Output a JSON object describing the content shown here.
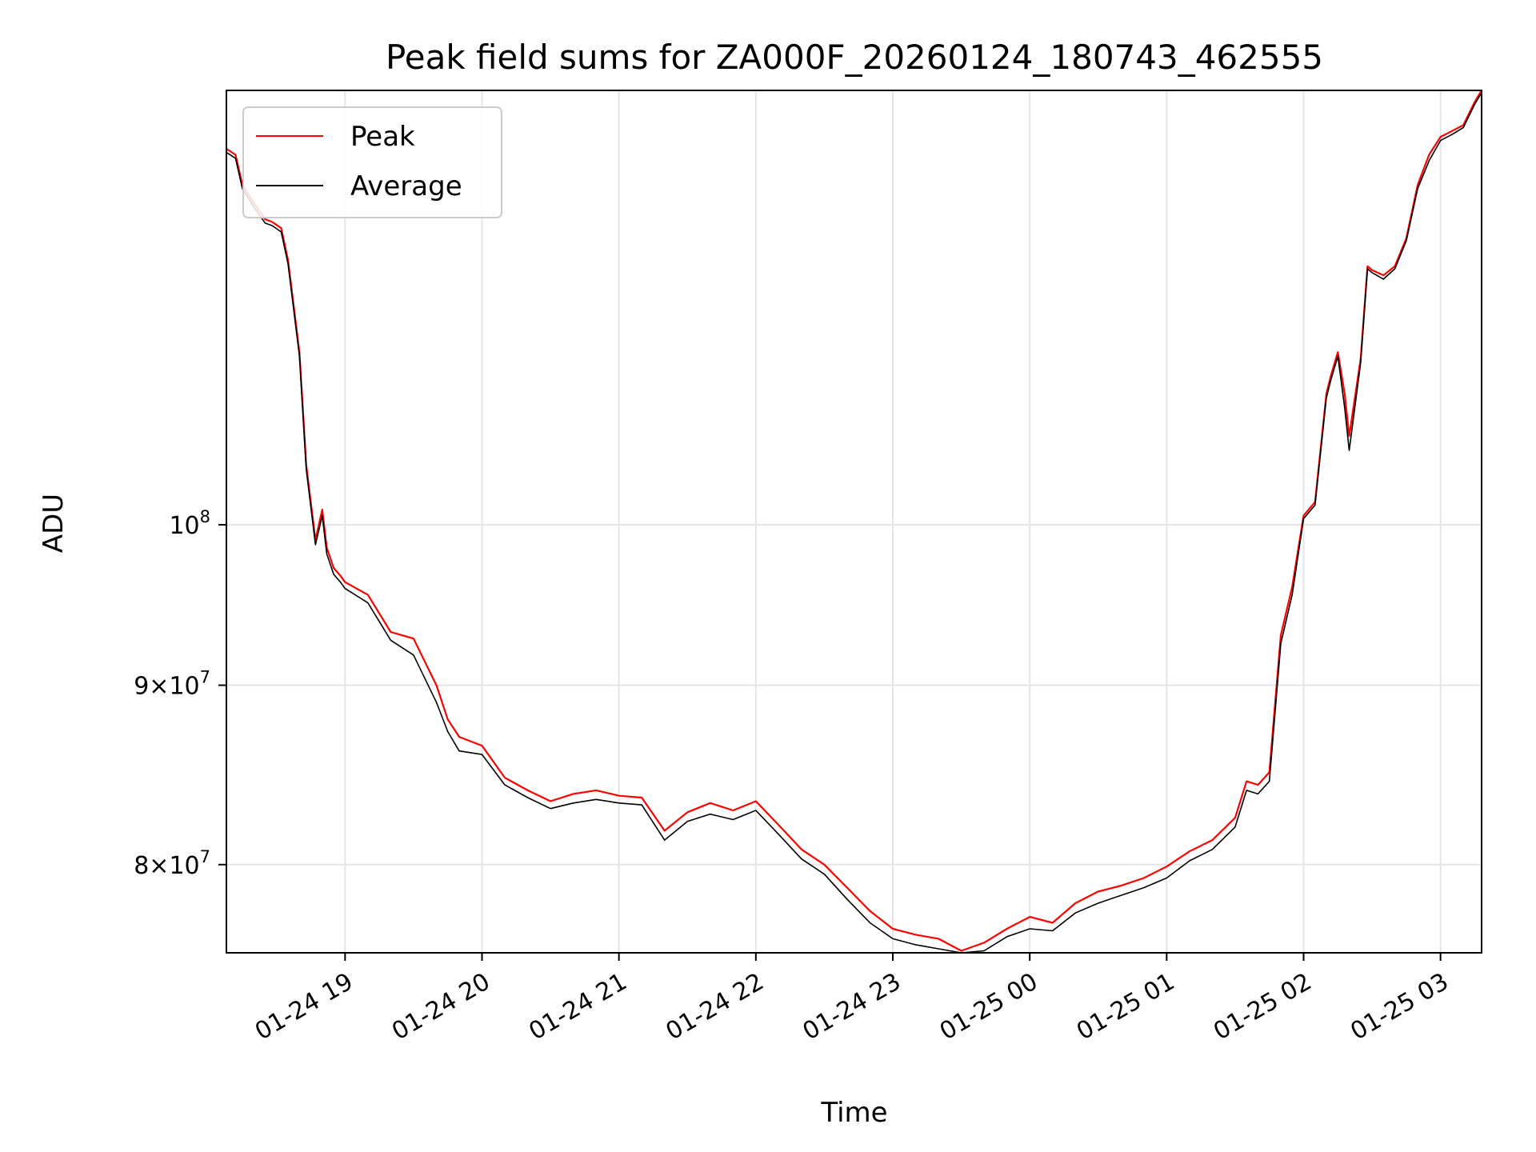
{
  "chart_data": {
    "type": "line",
    "title": "Peak field sums for ZA000F_20260124_180743_462555",
    "xlabel": "Time",
    "ylabel": "ADU",
    "yscale": "log",
    "xlim": [
      "2026-01-24 18:08",
      "2026-01-25 03:18"
    ],
    "ylim": [
      75500000,
      133000000
    ],
    "grid": true,
    "legend_position": "top-left",
    "x_ticks": [
      {
        "value": "2026-01-24 19:00",
        "label": "01-24 19"
      },
      {
        "value": "2026-01-24 20:00",
        "label": "01-24 20"
      },
      {
        "value": "2026-01-24 21:00",
        "label": "01-24 21"
      },
      {
        "value": "2026-01-24 22:00",
        "label": "01-24 22"
      },
      {
        "value": "2026-01-24 23:00",
        "label": "01-24 23"
      },
      {
        "value": "2026-01-25 00:00",
        "label": "01-25 00"
      },
      {
        "value": "2026-01-25 01:00",
        "label": "01-25 01"
      },
      {
        "value": "2026-01-25 02:00",
        "label": "01-25 02"
      },
      {
        "value": "2026-01-25 03:00",
        "label": "01-25 03"
      }
    ],
    "y_ticks": [
      {
        "value": 80000000,
        "mantissa": "8",
        "base": "10",
        "exp": "7"
      },
      {
        "value": 90000000,
        "mantissa": "9",
        "base": "10",
        "exp": "7"
      },
      {
        "value": 100000000,
        "mantissa": "",
        "base": "10",
        "exp": "8"
      }
    ],
    "series": [
      {
        "name": "Peak",
        "color": "#ff0000",
        "x": [
          "2026-01-24 18:08",
          "2026-01-24 18:12",
          "2026-01-24 18:15",
          "2026-01-24 18:20",
          "2026-01-24 18:25",
          "2026-01-24 18:28",
          "2026-01-24 18:32",
          "2026-01-24 18:35",
          "2026-01-24 18:40",
          "2026-01-24 18:43",
          "2026-01-24 18:47",
          "2026-01-24 18:50",
          "2026-01-24 18:52",
          "2026-01-24 18:55",
          "2026-01-24 18:58",
          "2026-01-24 19:00",
          "2026-01-24 19:10",
          "2026-01-24 19:20",
          "2026-01-24 19:30",
          "2026-01-24 19:40",
          "2026-01-24 19:45",
          "2026-01-24 19:50",
          "2026-01-24 20:00",
          "2026-01-24 20:10",
          "2026-01-24 20:20",
          "2026-01-24 20:30",
          "2026-01-24 20:40",
          "2026-01-24 20:50",
          "2026-01-24 21:00",
          "2026-01-24 21:10",
          "2026-01-24 21:20",
          "2026-01-24 21:30",
          "2026-01-24 21:40",
          "2026-01-24 21:50",
          "2026-01-24 22:00",
          "2026-01-24 22:10",
          "2026-01-24 22:20",
          "2026-01-24 22:30",
          "2026-01-24 22:40",
          "2026-01-24 22:50",
          "2026-01-24 23:00",
          "2026-01-24 23:10",
          "2026-01-24 23:20",
          "2026-01-24 23:30",
          "2026-01-24 23:40",
          "2026-01-24 23:50",
          "2026-01-25 00:00",
          "2026-01-25 00:10",
          "2026-01-25 00:20",
          "2026-01-25 00:30",
          "2026-01-25 00:40",
          "2026-01-25 00:50",
          "2026-01-25 01:00",
          "2026-01-25 01:10",
          "2026-01-25 01:20",
          "2026-01-25 01:30",
          "2026-01-25 01:35",
          "2026-01-25 01:40",
          "2026-01-25 01:45",
          "2026-01-25 01:50",
          "2026-01-25 01:55",
          "2026-01-25 02:00",
          "2026-01-25 02:05",
          "2026-01-25 02:10",
          "2026-01-25 02:12",
          "2026-01-25 02:15",
          "2026-01-25 02:18",
          "2026-01-25 02:20",
          "2026-01-25 02:25",
          "2026-01-25 02:28",
          "2026-01-25 02:30",
          "2026-01-25 02:35",
          "2026-01-25 02:40",
          "2026-01-25 02:45",
          "2026-01-25 02:50",
          "2026-01-25 02:55",
          "2026-01-25 03:00",
          "2026-01-25 03:05",
          "2026-01-25 03:10",
          "2026-01-25 03:15",
          "2026-01-25 03:18"
        ],
        "y": [
          128000000,
          127500000,
          125000000,
          123500000,
          122200000,
          122000000,
          121500000,
          119000000,
          112000000,
          104000000,
          99000000,
          101000000,
          98500000,
          97200000,
          96700000,
          96300000,
          95500000,
          93200000,
          92800000,
          90000000,
          88000000,
          87000000,
          86500000,
          84700000,
          84000000,
          83400000,
          83800000,
          84000000,
          83700000,
          83600000,
          81800000,
          82800000,
          83300000,
          82900000,
          83400000,
          82100000,
          80800000,
          80000000,
          78800000,
          77600000,
          76700000,
          76400000,
          76200000,
          75600000,
          76000000,
          76700000,
          77300000,
          77000000,
          78000000,
          78600000,
          78900000,
          79300000,
          79900000,
          80700000,
          81300000,
          82500000,
          84500000,
          84300000,
          85000000,
          93000000,
          96000000,
          100600000,
          101500000,
          109000000,
          110300000,
          112000000,
          109000000,
          106000000,
          111500000,
          118500000,
          118200000,
          117800000,
          118500000,
          120700000,
          125000000,
          127500000,
          129000000,
          129500000,
          130000000,
          132000000,
          133000000
        ]
      },
      {
        "name": "Average",
        "color": "#000000",
        "x": [
          "2026-01-24 18:08",
          "2026-01-24 18:12",
          "2026-01-24 18:15",
          "2026-01-24 18:20",
          "2026-01-24 18:25",
          "2026-01-24 18:28",
          "2026-01-24 18:32",
          "2026-01-24 18:35",
          "2026-01-24 18:40",
          "2026-01-24 18:43",
          "2026-01-24 18:47",
          "2026-01-24 18:50",
          "2026-01-24 18:52",
          "2026-01-24 18:55",
          "2026-01-24 18:58",
          "2026-01-24 19:00",
          "2026-01-24 19:10",
          "2026-01-24 19:20",
          "2026-01-24 19:30",
          "2026-01-24 19:40",
          "2026-01-24 19:45",
          "2026-01-24 19:50",
          "2026-01-24 20:00",
          "2026-01-24 20:10",
          "2026-01-24 20:20",
          "2026-01-24 20:30",
          "2026-01-24 20:40",
          "2026-01-24 20:50",
          "2026-01-24 21:00",
          "2026-01-24 21:10",
          "2026-01-24 21:20",
          "2026-01-24 21:30",
          "2026-01-24 21:40",
          "2026-01-24 21:50",
          "2026-01-24 22:00",
          "2026-01-24 22:10",
          "2026-01-24 22:20",
          "2026-01-24 22:30",
          "2026-01-24 22:40",
          "2026-01-24 22:50",
          "2026-01-24 23:00",
          "2026-01-24 23:10",
          "2026-01-24 23:20",
          "2026-01-24 23:30",
          "2026-01-24 23:40",
          "2026-01-24 23:50",
          "2026-01-25 00:00",
          "2026-01-25 00:10",
          "2026-01-25 00:20",
          "2026-01-25 00:30",
          "2026-01-25 00:40",
          "2026-01-25 00:50",
          "2026-01-25 01:00",
          "2026-01-25 01:10",
          "2026-01-25 01:20",
          "2026-01-25 01:30",
          "2026-01-25 01:35",
          "2026-01-25 01:40",
          "2026-01-25 01:45",
          "2026-01-25 01:50",
          "2026-01-25 01:55",
          "2026-01-25 02:00",
          "2026-01-25 02:05",
          "2026-01-25 02:10",
          "2026-01-25 02:12",
          "2026-01-25 02:15",
          "2026-01-25 02:18",
          "2026-01-25 02:20",
          "2026-01-25 02:25",
          "2026-01-25 02:28",
          "2026-01-25 02:30",
          "2026-01-25 02:35",
          "2026-01-25 02:40",
          "2026-01-25 02:45",
          "2026-01-25 02:50",
          "2026-01-25 02:55",
          "2026-01-25 03:00",
          "2026-01-25 03:05",
          "2026-01-25 03:10",
          "2026-01-25 03:15",
          "2026-01-25 03:18"
        ],
        "y": [
          127700000,
          127200000,
          124700000,
          123200000,
          121900000,
          121700000,
          121200000,
          118700000,
          111700000,
          103700000,
          98700000,
          100600000,
          98100000,
          96800000,
          96300000,
          95900000,
          95000000,
          92700000,
          91800000,
          89000000,
          87300000,
          86200000,
          86000000,
          84300000,
          83600000,
          83000000,
          83300000,
          83500000,
          83300000,
          83200000,
          81300000,
          82300000,
          82700000,
          82400000,
          82900000,
          81600000,
          80300000,
          79500000,
          78200000,
          77000000,
          76200000,
          75900000,
          75700000,
          75500000,
          75600000,
          76300000,
          76700000,
          76600000,
          77500000,
          78000000,
          78400000,
          78800000,
          79300000,
          80200000,
          80800000,
          82000000,
          84000000,
          83800000,
          84500000,
          92500000,
          95500000,
          100400000,
          101300000,
          108700000,
          110000000,
          111700000,
          108000000,
          105000000,
          111200000,
          118300000,
          118000000,
          117500000,
          118300000,
          120500000,
          124700000,
          127000000,
          128700000,
          129200000,
          129800000,
          131800000,
          132800000
        ]
      }
    ]
  }
}
